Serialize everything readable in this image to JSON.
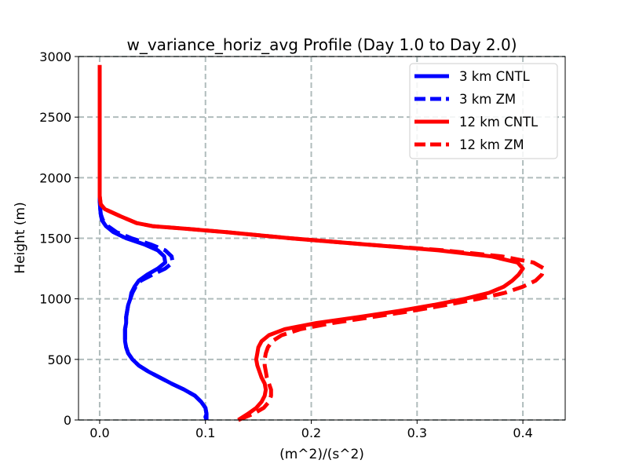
{
  "chart_data": {
    "type": "line",
    "title": "w_variance_horiz_avg Profile (Day 1.0 to Day 2.0)",
    "xlabel": "(m^2)/(s^2)",
    "ylabel": "Height (m)",
    "xlim": [
      -0.02,
      0.44
    ],
    "ylim": [
      0,
      3000
    ],
    "xticks": [
      0.0,
      0.1,
      0.2,
      0.3,
      0.4
    ],
    "xtick_labels": [
      "0.0",
      "0.1",
      "0.2",
      "0.3",
      "0.4"
    ],
    "yticks": [
      0,
      500,
      1000,
      1500,
      2000,
      2500,
      3000
    ],
    "ytick_labels": [
      "0",
      "500",
      "1000",
      "1500",
      "2000",
      "2500",
      "3000"
    ],
    "grid": true,
    "legend_position": "top-right",
    "series": [
      {
        "name": "3 km CNTL",
        "color": "#0000ff",
        "linestyle": "solid",
        "points": [
          [
            0.101,
            0
          ],
          [
            0.1,
            25
          ],
          [
            0.101,
            50
          ],
          [
            0.1,
            100
          ],
          [
            0.096,
            150
          ],
          [
            0.09,
            200
          ],
          [
            0.08,
            250
          ],
          [
            0.068,
            300
          ],
          [
            0.057,
            350
          ],
          [
            0.046,
            400
          ],
          [
            0.037,
            450
          ],
          [
            0.031,
            500
          ],
          [
            0.027,
            550
          ],
          [
            0.025,
            600
          ],
          [
            0.024,
            650
          ],
          [
            0.024,
            700
          ],
          [
            0.024,
            750
          ],
          [
            0.025,
            800
          ],
          [
            0.025,
            850
          ],
          [
            0.026,
            900
          ],
          [
            0.027,
            950
          ],
          [
            0.029,
            1000
          ],
          [
            0.03,
            1050
          ],
          [
            0.033,
            1100
          ],
          [
            0.037,
            1150
          ],
          [
            0.045,
            1200
          ],
          [
            0.055,
            1250
          ],
          [
            0.062,
            1300
          ],
          [
            0.061,
            1350
          ],
          [
            0.055,
            1400
          ],
          [
            0.042,
            1450
          ],
          [
            0.025,
            1500
          ],
          [
            0.013,
            1550
          ],
          [
            0.006,
            1600
          ],
          [
            0.002,
            1650
          ],
          [
            0.001,
            1700
          ],
          [
            0.0005,
            1750
          ],
          [
            0.0,
            1800
          ],
          [
            0.0,
            1850
          ],
          [
            0.0,
            1900
          ]
        ]
      },
      {
        "name": "3 km ZM",
        "color": "#0000ff",
        "linestyle": "dashed",
        "points": [
          [
            0.101,
            0
          ],
          [
            0.101,
            50
          ],
          [
            0.1,
            100
          ],
          [
            0.096,
            150
          ],
          [
            0.09,
            200
          ],
          [
            0.08,
            250
          ],
          [
            0.068,
            300
          ],
          [
            0.057,
            350
          ],
          [
            0.046,
            400
          ],
          [
            0.037,
            450
          ],
          [
            0.031,
            500
          ],
          [
            0.027,
            550
          ],
          [
            0.025,
            600
          ],
          [
            0.024,
            650
          ],
          [
            0.024,
            700
          ],
          [
            0.024,
            750
          ],
          [
            0.025,
            800
          ],
          [
            0.025,
            850
          ],
          [
            0.026,
            900
          ],
          [
            0.027,
            950
          ],
          [
            0.029,
            1000
          ],
          [
            0.031,
            1050
          ],
          [
            0.034,
            1100
          ],
          [
            0.039,
            1150
          ],
          [
            0.05,
            1200
          ],
          [
            0.062,
            1250
          ],
          [
            0.069,
            1300
          ],
          [
            0.068,
            1350
          ],
          [
            0.062,
            1400
          ],
          [
            0.048,
            1450
          ],
          [
            0.03,
            1500
          ],
          [
            0.016,
            1550
          ],
          [
            0.008,
            1600
          ],
          [
            0.003,
            1650
          ],
          [
            0.001,
            1700
          ],
          [
            0.0005,
            1750
          ],
          [
            0.0,
            1800
          ],
          [
            0.0,
            1850
          ],
          [
            0.0,
            1900
          ]
        ]
      },
      {
        "name": "12 km CNTL",
        "color": "#ff0000",
        "linestyle": "solid",
        "points": [
          [
            0.131,
            0
          ],
          [
            0.14,
            50
          ],
          [
            0.148,
            100
          ],
          [
            0.153,
            150
          ],
          [
            0.156,
            200
          ],
          [
            0.157,
            250
          ],
          [
            0.156,
            300
          ],
          [
            0.153,
            350
          ],
          [
            0.151,
            400
          ],
          [
            0.149,
            450
          ],
          [
            0.148,
            500
          ],
          [
            0.149,
            550
          ],
          [
            0.15,
            600
          ],
          [
            0.153,
            650
          ],
          [
            0.16,
            700
          ],
          [
            0.175,
            750
          ],
          [
            0.205,
            800
          ],
          [
            0.245,
            850
          ],
          [
            0.283,
            900
          ],
          [
            0.316,
            950
          ],
          [
            0.345,
            1000
          ],
          [
            0.368,
            1050
          ],
          [
            0.382,
            1100
          ],
          [
            0.39,
            1150
          ],
          [
            0.396,
            1200
          ],
          [
            0.4,
            1250
          ],
          [
            0.395,
            1300
          ],
          [
            0.37,
            1350
          ],
          [
            0.32,
            1400
          ],
          [
            0.25,
            1450
          ],
          [
            0.18,
            1500
          ],
          [
            0.12,
            1550
          ],
          [
            0.08,
            1580
          ],
          [
            0.05,
            1600
          ],
          [
            0.035,
            1625
          ],
          [
            0.02,
            1680
          ],
          [
            0.005,
            1740
          ],
          [
            0.001,
            1780
          ],
          [
            0.0,
            1850
          ],
          [
            0.0,
            2000
          ],
          [
            0.0,
            2500
          ],
          [
            0.0,
            2930
          ]
        ]
      },
      {
        "name": "12 km ZM",
        "color": "#ff0000",
        "linestyle": "dashed",
        "points": [
          [
            0.131,
            0
          ],
          [
            0.145,
            50
          ],
          [
            0.155,
            100
          ],
          [
            0.16,
            150
          ],
          [
            0.162,
            200
          ],
          [
            0.162,
            250
          ],
          [
            0.16,
            300
          ],
          [
            0.158,
            350
          ],
          [
            0.157,
            400
          ],
          [
            0.156,
            450
          ],
          [
            0.156,
            500
          ],
          [
            0.157,
            550
          ],
          [
            0.159,
            600
          ],
          [
            0.163,
            650
          ],
          [
            0.172,
            700
          ],
          [
            0.19,
            750
          ],
          [
            0.22,
            800
          ],
          [
            0.258,
            850
          ],
          [
            0.295,
            900
          ],
          [
            0.328,
            950
          ],
          [
            0.358,
            1000
          ],
          [
            0.383,
            1050
          ],
          [
            0.4,
            1100
          ],
          [
            0.412,
            1150
          ],
          [
            0.418,
            1200
          ],
          [
            0.42,
            1250
          ],
          [
            0.41,
            1300
          ],
          [
            0.38,
            1350
          ],
          [
            0.325,
            1400
          ],
          [
            0.25,
            1450
          ],
          [
            0.18,
            1500
          ],
          [
            0.12,
            1550
          ],
          [
            0.08,
            1580
          ],
          [
            0.05,
            1600
          ],
          [
            0.035,
            1625
          ],
          [
            0.02,
            1680
          ],
          [
            0.005,
            1740
          ],
          [
            0.001,
            1780
          ],
          [
            0.0,
            1850
          ],
          [
            0.0,
            2000
          ],
          [
            0.0,
            2500
          ],
          [
            0.0,
            2930
          ]
        ]
      }
    ]
  }
}
